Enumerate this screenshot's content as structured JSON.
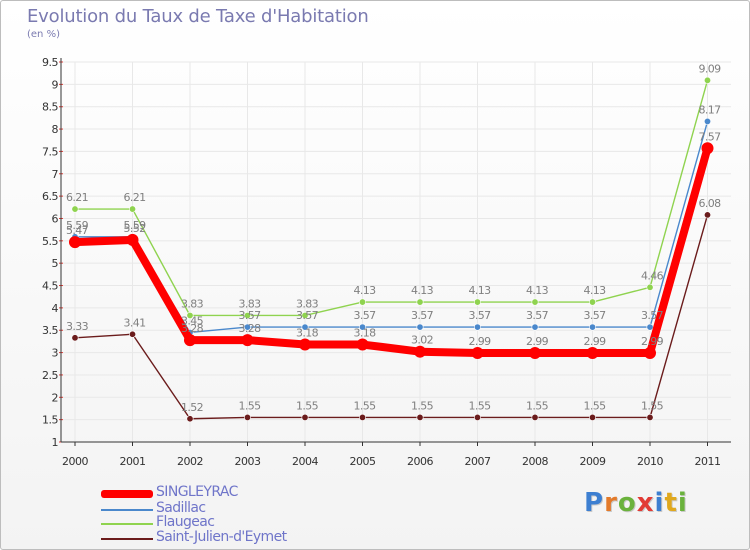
{
  "header": {
    "title": "Evolution du Taux de Taxe d'Habitation",
    "subtitle": "(en %)"
  },
  "colors": {
    "title": "#7a7ab0",
    "axis": "#333333",
    "grid": "#e8e8e8",
    "value_label": "#7f7f7f",
    "legend_text": "#6f75c9"
  },
  "logo": {
    "text": "Proxiti",
    "letter_colors": [
      "#3d7fd1",
      "#e37a2a",
      "#6ab23c",
      "#e23b35",
      "#3d7fd1",
      "#e0a81d",
      "#6ab23c"
    ]
  },
  "chart_data": {
    "type": "line",
    "title": "Evolution du Taux de Taxe d'Habitation",
    "subtitle": "(en %)",
    "x": [
      "2000",
      "2001",
      "2002",
      "2003",
      "2004",
      "2005",
      "2006",
      "2007",
      "2008",
      "2009",
      "2010",
      "2011"
    ],
    "ylim": [
      1,
      9.5
    ],
    "yticks": [
      "1",
      "1.5",
      "2",
      "2.5",
      "3",
      "3.5",
      "4",
      "4.5",
      "5",
      "5.5",
      "6",
      "6.5",
      "7",
      "7.5",
      "8",
      "8.5",
      "9",
      "9.5"
    ],
    "grid": true,
    "legend_position": "bottom-left",
    "series": [
      {
        "name": "Saint-Julien-d'Eymet",
        "color": "#6b1c1c",
        "values": [
          3.33,
          3.41,
          1.52,
          1.55,
          1.55,
          1.55,
          1.55,
          1.55,
          1.55,
          1.55,
          1.55,
          6.08
        ],
        "labels": [
          "3.33",
          "3.41",
          "1.52",
          "1.55",
          "1.55",
          "1.55",
          "1.55",
          "1.55",
          "1.55",
          "1.55",
          "1.55",
          "6.08"
        ]
      },
      {
        "name": "Sadillac",
        "color": "#4a88cc",
        "values": [
          5.59,
          5.59,
          3.45,
          3.57,
          3.57,
          3.57,
          3.57,
          3.57,
          3.57,
          3.57,
          3.57,
          8.17
        ],
        "labels": [
          "5.59",
          "5.59",
          "3.45",
          "3.57",
          "3.57",
          "3.57",
          "3.57",
          "3.57",
          "3.57",
          "3.57",
          "3.57",
          "8.17"
        ]
      },
      {
        "name": "Flaugeac",
        "color": "#8fd34f",
        "values": [
          6.21,
          6.21,
          3.83,
          3.83,
          3.83,
          4.13,
          4.13,
          4.13,
          4.13,
          4.13,
          4.46,
          9.09
        ],
        "labels": [
          "6.21",
          "6.21",
          "3.83",
          "3.83",
          "3.83",
          "4.13",
          "4.13",
          "4.13",
          "4.13",
          "4.13",
          "4.46",
          "9.09"
        ]
      },
      {
        "name": "SINGLEYRAC",
        "color": "#ff0000",
        "values": [
          5.47,
          5.52,
          3.28,
          3.28,
          3.18,
          3.18,
          3.02,
          2.99,
          2.99,
          2.99,
          2.99,
          7.57
        ],
        "labels": [
          "5.47",
          "5.52",
          "3.28",
          "3.28",
          "3.18",
          "3.18",
          "3.02",
          "2.99",
          "2.99",
          "2.99",
          "2.99",
          "7.57"
        ]
      }
    ],
    "legend": [
      "SINGLEYRAC",
      "Sadillac",
      "Flaugeac",
      "Saint-Julien-d'Eymet"
    ]
  }
}
